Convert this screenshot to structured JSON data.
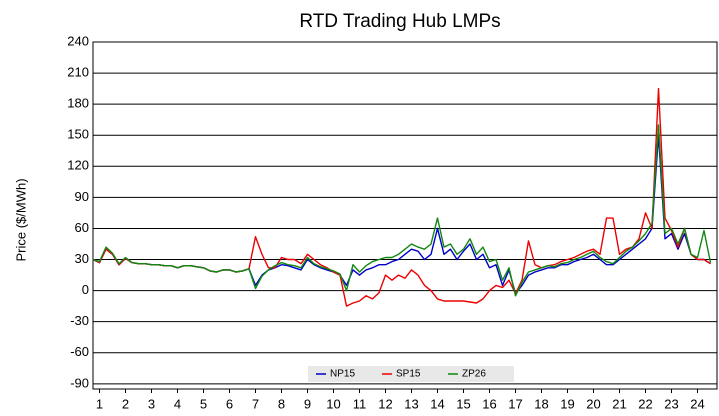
{
  "chart_data": {
    "type": "line",
    "title": "RTD Trading Hub LMPs",
    "y_label": "Price ($/MWh)",
    "x": [
      0.75,
      1,
      1.25,
      1.5,
      1.75,
      2,
      2.25,
      2.5,
      2.75,
      3,
      3.25,
      3.5,
      3.75,
      4,
      4.25,
      4.5,
      4.75,
      5,
      5.25,
      5.5,
      5.75,
      6,
      6.25,
      6.5,
      6.75,
      7,
      7.25,
      7.5,
      7.75,
      8,
      8.25,
      8.5,
      8.75,
      9,
      9.25,
      9.5,
      9.75,
      10,
      10.25,
      10.5,
      10.75,
      11,
      11.25,
      11.5,
      11.75,
      12,
      12.25,
      12.5,
      12.75,
      13,
      13.25,
      13.5,
      13.75,
      14,
      14.25,
      14.5,
      14.75,
      15,
      15.25,
      15.5,
      15.75,
      16,
      16.25,
      16.5,
      16.75,
      17,
      17.25,
      17.5,
      17.75,
      18,
      18.25,
      18.5,
      18.75,
      19,
      19.25,
      19.5,
      19.75,
      20,
      20.25,
      20.5,
      20.75,
      21,
      21.25,
      21.5,
      21.75,
      22,
      22.25,
      22.5,
      22.75,
      23,
      23.25,
      23.5,
      23.75,
      24,
      24.25,
      24.5
    ],
    "series": [
      {
        "name": "NP15",
        "color": "#0000cc",
        "values": [
          30,
          27,
          40,
          35,
          25,
          31,
          27,
          26,
          26,
          25,
          25,
          24,
          24,
          22,
          24,
          24,
          23,
          22,
          19,
          18,
          20,
          20,
          18,
          19,
          21,
          5,
          15,
          20,
          22,
          25,
          24,
          22,
          20,
          30,
          25,
          22,
          20,
          18,
          15,
          5,
          20,
          15,
          20,
          22,
          25,
          25,
          28,
          30,
          35,
          40,
          38,
          30,
          35,
          60,
          35,
          40,
          30,
          38,
          45,
          30,
          35,
          22,
          25,
          5,
          20,
          -3,
          5,
          15,
          18,
          20,
          22,
          22,
          25,
          25,
          28,
          30,
          32,
          35,
          30,
          25,
          25,
          30,
          35,
          40,
          45,
          50,
          60,
          150,
          50,
          55,
          40,
          55,
          35,
          30,
          30,
          26
        ]
      },
      {
        "name": "SP15",
        "color": "#ee0000",
        "values": [
          30,
          27,
          40,
          35,
          25,
          31,
          27,
          26,
          26,
          25,
          25,
          24,
          24,
          22,
          24,
          24,
          23,
          22,
          19,
          18,
          20,
          20,
          18,
          19,
          21,
          52,
          35,
          22,
          22,
          32,
          30,
          30,
          26,
          35,
          30,
          25,
          22,
          18,
          15,
          -15,
          -12,
          -10,
          -5,
          -8,
          -2,
          15,
          10,
          15,
          12,
          20,
          15,
          5,
          0,
          -8,
          -10,
          -10,
          -10,
          -10,
          -11,
          -12,
          -8,
          0,
          5,
          3,
          10,
          -3,
          10,
          48,
          25,
          22,
          24,
          25,
          28,
          30,
          32,
          35,
          38,
          40,
          35,
          70,
          70,
          35,
          40,
          42,
          50,
          75,
          60,
          195,
          70,
          58,
          42,
          60,
          35,
          30,
          30,
          26
        ]
      },
      {
        "name": "ZP26",
        "color": "#118811",
        "values": [
          30,
          28,
          42,
          36,
          26,
          32,
          27,
          26,
          26,
          25,
          25,
          24,
          24,
          22,
          24,
          24,
          23,
          22,
          19,
          18,
          20,
          20,
          18,
          19,
          21,
          2,
          14,
          20,
          24,
          27,
          25,
          24,
          22,
          32,
          26,
          23,
          21,
          19,
          16,
          0,
          25,
          18,
          24,
          28,
          30,
          32,
          32,
          35,
          40,
          45,
          42,
          40,
          45,
          70,
          42,
          45,
          35,
          40,
          50,
          35,
          42,
          28,
          30,
          10,
          22,
          -5,
          8,
          18,
          20,
          22,
          24,
          23,
          26,
          27,
          30,
          32,
          35,
          38,
          32,
          28,
          26,
          32,
          38,
          42,
          48,
          55,
          65,
          160,
          55,
          60,
          45,
          60,
          35,
          32,
          58,
          27
        ]
      }
    ],
    "xlim": [
      0.75,
      24.75
    ],
    "xticks": [
      1,
      2,
      3,
      4,
      5,
      6,
      7,
      8,
      9,
      10,
      11,
      12,
      13,
      14,
      15,
      16,
      17,
      18,
      19,
      20,
      21,
      22,
      23,
      24
    ],
    "ylim": [
      -95,
      240
    ],
    "yticks": [
      -90,
      -60,
      -30,
      0,
      30,
      60,
      90,
      120,
      150,
      180,
      210,
      240
    ],
    "grid": true
  }
}
